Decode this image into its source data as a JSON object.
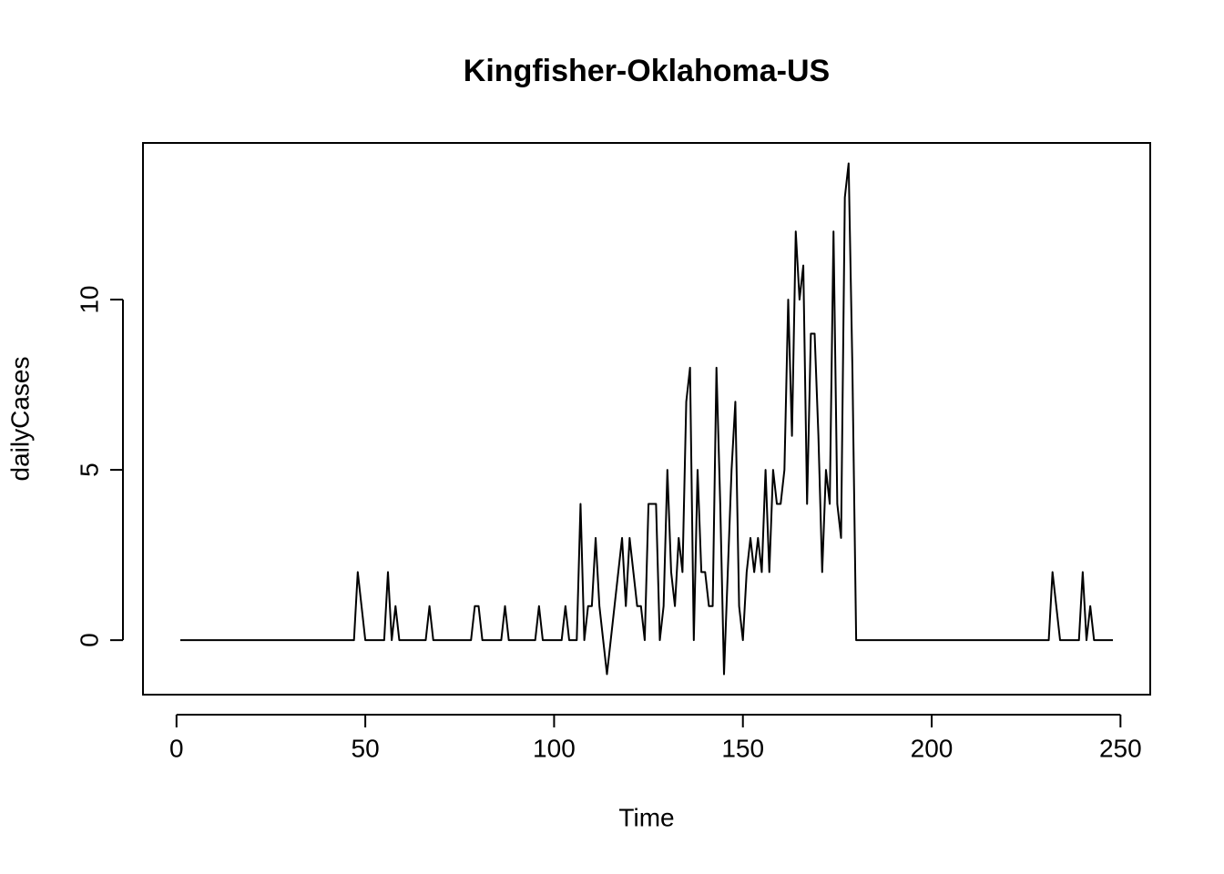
{
  "chart_data": {
    "type": "line",
    "title": "Kingfisher-Oklahoma-US",
    "xlabel": "Time",
    "ylabel": "dailyCases",
    "x": [
      1,
      2,
      3,
      4,
      5,
      6,
      7,
      8,
      9,
      10,
      11,
      12,
      13,
      14,
      15,
      16,
      17,
      18,
      19,
      20,
      21,
      22,
      23,
      24,
      25,
      26,
      27,
      28,
      29,
      30,
      31,
      32,
      33,
      34,
      35,
      36,
      37,
      38,
      39,
      40,
      41,
      42,
      43,
      44,
      45,
      46,
      47,
      48,
      49,
      50,
      51,
      52,
      53,
      54,
      55,
      56,
      57,
      58,
      59,
      60,
      61,
      62,
      63,
      64,
      65,
      66,
      67,
      68,
      69,
      70,
      71,
      72,
      73,
      74,
      75,
      76,
      77,
      78,
      79,
      80,
      81,
      82,
      83,
      84,
      85,
      86,
      87,
      88,
      89,
      90,
      91,
      92,
      93,
      94,
      95,
      96,
      97,
      98,
      99,
      100,
      101,
      102,
      103,
      104,
      105,
      106,
      107,
      108,
      109,
      110,
      111,
      112,
      113,
      114,
      115,
      116,
      117,
      118,
      119,
      120,
      121,
      122,
      123,
      124,
      125,
      126,
      127,
      128,
      129,
      130,
      131,
      132,
      133,
      134,
      135,
      136,
      137,
      138,
      139,
      140,
      141,
      142,
      143,
      144,
      145,
      146,
      147,
      148,
      149,
      150,
      151,
      152,
      153,
      154,
      155,
      156,
      157,
      158,
      159,
      160,
      161,
      162,
      163,
      164,
      165,
      166,
      167,
      168,
      169,
      170,
      171,
      172,
      173,
      174,
      175,
      176,
      177,
      178,
      179,
      180,
      181,
      182,
      183,
      184,
      185,
      186,
      187,
      188,
      189,
      190,
      191,
      192,
      193,
      194,
      195,
      196,
      197,
      198,
      199,
      200,
      201,
      202,
      203,
      204,
      205,
      206,
      207,
      208,
      209,
      210,
      211,
      212,
      213,
      214,
      215,
      216,
      217,
      218,
      219,
      220,
      221,
      222,
      223,
      224,
      225,
      226,
      227,
      228,
      229,
      230,
      231,
      232,
      233,
      234,
      235,
      236,
      237,
      238,
      239,
      240,
      241,
      242,
      243,
      244,
      245,
      246,
      247,
      248
    ],
    "values": [
      0,
      0,
      0,
      0,
      0,
      0,
      0,
      0,
      0,
      0,
      0,
      0,
      0,
      0,
      0,
      0,
      0,
      0,
      0,
      0,
      0,
      0,
      0,
      0,
      0,
      0,
      0,
      0,
      0,
      0,
      0,
      0,
      0,
      0,
      0,
      0,
      0,
      0,
      0,
      0,
      0,
      0,
      0,
      0,
      0,
      0,
      0,
      2,
      1,
      0,
      0,
      0,
      0,
      0,
      0,
      2,
      0,
      1,
      0,
      0,
      0,
      0,
      0,
      0,
      0,
      0,
      1,
      0,
      0,
      0,
      0,
      0,
      0,
      0,
      0,
      0,
      0,
      0,
      1,
      1,
      0,
      0,
      0,
      0,
      0,
      0,
      1,
      0,
      0,
      0,
      0,
      0,
      0,
      0,
      0,
      1,
      0,
      0,
      0,
      0,
      0,
      0,
      1,
      0,
      0,
      0,
      4,
      0,
      1,
      1,
      3,
      1,
      0,
      -1,
      0,
      1,
      2,
      3,
      1,
      3,
      2,
      1,
      1,
      0,
      4,
      4,
      4,
      0,
      1,
      5,
      2,
      1,
      3,
      2,
      7,
      8,
      0,
      5,
      2,
      2,
      1,
      1,
      8,
      4,
      -1,
      2,
      5,
      7,
      1,
      0,
      2,
      3,
      2,
      3,
      2,
      5,
      2,
      5,
      4,
      4,
      5,
      10,
      6,
      12,
      10,
      11,
      4,
      9,
      9,
      6,
      2,
      5,
      4,
      12,
      4,
      3,
      13,
      14,
      8,
      0,
      0,
      0,
      0,
      0,
      0,
      0,
      0,
      0,
      0,
      0,
      0,
      0,
      0,
      0,
      0,
      0,
      0,
      0,
      0,
      0,
      0,
      0,
      0,
      0,
      0,
      0,
      0,
      0,
      0,
      0,
      0,
      0,
      0,
      0,
      0,
      0,
      0,
      0,
      0,
      0,
      0,
      0,
      0,
      0,
      0,
      0,
      0,
      0,
      0,
      0,
      0,
      2,
      1,
      0,
      0,
      0,
      0,
      0,
      0,
      2,
      0,
      1,
      0,
      0,
      0,
      0,
      0,
      0
    ],
    "color": "#000000",
    "xlim": [
      -8.88,
      257.88
    ],
    "ylim": [
      -1.6,
      14.6
    ],
    "xticks": [
      0,
      50,
      100,
      150,
      200,
      250
    ],
    "yticks": [
      0,
      5,
      10
    ]
  }
}
